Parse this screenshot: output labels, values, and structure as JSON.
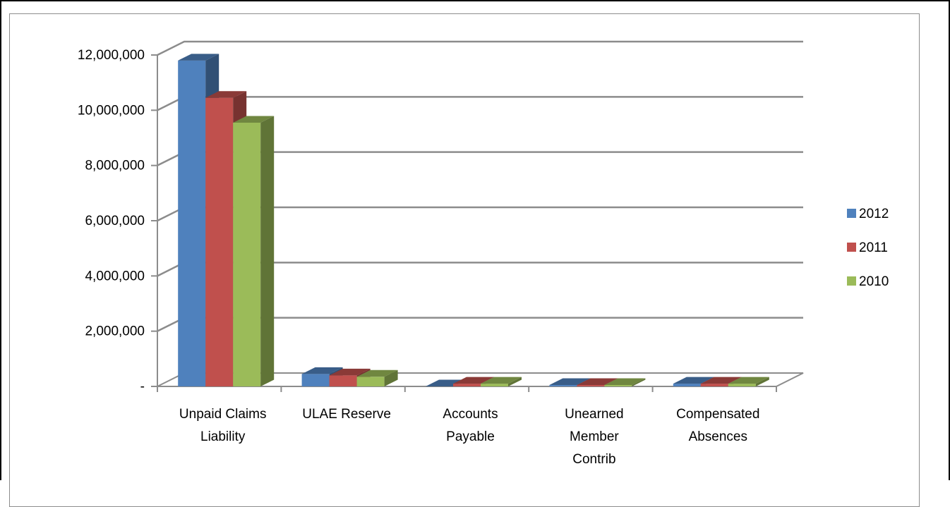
{
  "chart_data": {
    "type": "bar",
    "subtype": "3d-clustered-column",
    "categories": [
      [
        "Unpaid Claims",
        "Liability"
      ],
      [
        "ULAE Reserve"
      ],
      [
        "Accounts",
        "Payable"
      ],
      [
        "Unearned",
        "Member",
        "Contrib"
      ],
      [
        "Compensated",
        "Absences"
      ]
    ],
    "series": [
      {
        "name": "2012",
        "color": "#4f81bd",
        "values": [
          11800000,
          450000,
          0,
          50000,
          100000
        ]
      },
      {
        "name": "2011",
        "color": "#c0504d",
        "values": [
          10450000,
          400000,
          100000,
          50000,
          100000
        ]
      },
      {
        "name": "2010",
        "color": "#9bbb59",
        "values": [
          9550000,
          350000,
          100000,
          50000,
          100000
        ]
      }
    ],
    "yticks": [
      "-",
      "2,000,000",
      "4,000,000",
      "6,000,000",
      "8,000,000",
      "10,000,000",
      "12,000,000"
    ],
    "ylim": [
      0,
      12000000
    ],
    "grid": true,
    "legend_position": "right"
  }
}
